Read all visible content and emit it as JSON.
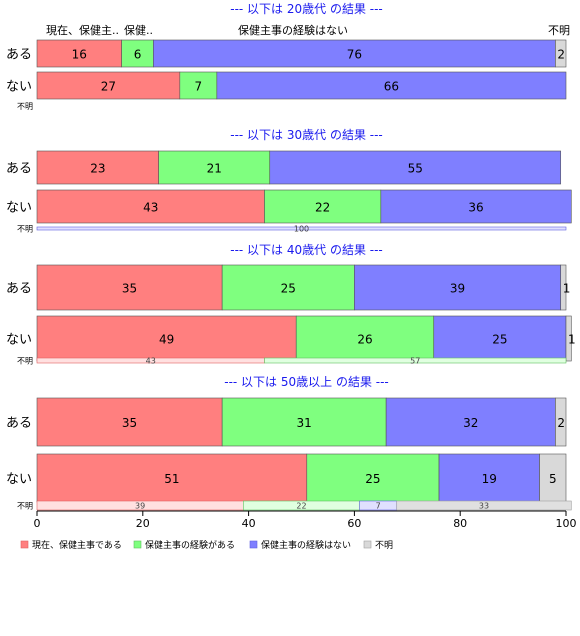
{
  "chart_data": {
    "type": "bar",
    "orientation": "horizontal",
    "stacked": true,
    "xlim": [
      0,
      100
    ],
    "xticks": [
      0,
      20,
      40,
      60,
      80,
      100
    ],
    "category_names": [
      "現在、保健主事である",
      "保健主事の経験がある",
      "保健主事の経験はない",
      "不明"
    ],
    "category_labels_top": [
      "現在、保健主..",
      "保健..",
      "保健主事の経験はない",
      "不明"
    ],
    "colors": {
      "fill": [
        "#ff7f7f",
        "#7fff7f",
        "#7f7fff",
        "#d9d9d9"
      ],
      "fill_light": [
        "#ffe0e0",
        "#e0ffe0",
        "#e0e0ff",
        "#e0e0e0"
      ],
      "stroke": [
        "#e06060",
        "#60c060",
        "#6060e0",
        "#a0a0a0"
      ],
      "title": "#1a1aee"
    },
    "legend": {
      "position": "bottom",
      "items": [
        "現在、保健主事である",
        "保健主事の経験がある",
        "保健主事の経験はない",
        "不明"
      ]
    },
    "panels": [
      {
        "title": "--- 以下は 20歳代 の結果 ---",
        "rows": [
          {
            "label": "ある",
            "values": [
              16,
              6,
              76,
              2
            ]
          },
          {
            "label": "ない",
            "values": [
              27,
              7,
              66,
              0
            ]
          },
          {
            "label": "不明",
            "values": [
              0,
              0,
              0,
              0
            ],
            "value_labels": []
          }
        ]
      },
      {
        "title": "--- 以下は 30歳代 の結果 ---",
        "rows": [
          {
            "label": "ある",
            "values": [
              23,
              21,
              55,
              0
            ]
          },
          {
            "label": "ない",
            "values": [
              43,
              22,
              36,
              0
            ]
          },
          {
            "label": "不明",
            "values": [
              0,
              0,
              100,
              0
            ],
            "value_labels": [
              null,
              null,
              100,
              null
            ]
          }
        ]
      },
      {
        "title": "--- 以下は 40歳代 の結果 ---",
        "rows": [
          {
            "label": "ある",
            "values": [
              35,
              25,
              39,
              1
            ]
          },
          {
            "label": "ない",
            "values": [
              49,
              26,
              25,
              1
            ]
          },
          {
            "label": "不明",
            "values": [
              43,
              57,
              0,
              0
            ],
            "value_labels": [
              43,
              57,
              null,
              null
            ]
          }
        ]
      },
      {
        "title": "--- 以下は 50歳以上 の結果 ---",
        "rows": [
          {
            "label": "ある",
            "values": [
              35,
              31,
              32,
              2
            ]
          },
          {
            "label": "ない",
            "values": [
              51,
              25,
              19,
              5
            ]
          },
          {
            "label": "不明",
            "values": [
              39,
              22,
              7,
              33
            ],
            "value_labels": [
              39,
              22,
              7,
              33
            ]
          }
        ]
      }
    ]
  }
}
